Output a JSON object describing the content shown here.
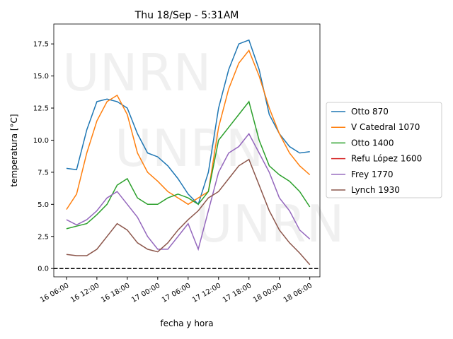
{
  "chart_data": {
    "type": "line",
    "title": "Thu 18/Sep - 5:31AM",
    "x_label": "fecha y hora",
    "y_label": "temperatura [°C]",
    "watermark": "UNRN",
    "x": [
      "16 06:00",
      "16 08:00",
      "16 10:00",
      "16 12:00",
      "16 14:00",
      "16 16:00",
      "16 18:00",
      "16 20:00",
      "16 22:00",
      "17 00:00",
      "17 02:00",
      "17 04:00",
      "17 06:00",
      "17 08:00",
      "17 10:00",
      "17 12:00",
      "17 14:00",
      "17 16:00",
      "17 18:00",
      "17 20:00",
      "17 22:00",
      "18 00:00",
      "18 02:00",
      "18 04:00",
      "18 06:00"
    ],
    "series": [
      {
        "name": "Otto 870",
        "color": "#1f77b4",
        "values": [
          7.8,
          7.7,
          10.8,
          13.0,
          13.2,
          13.0,
          12.5,
          10.5,
          9.0,
          8.7,
          8.0,
          7.0,
          5.8,
          5.0,
          7.5,
          12.5,
          15.5,
          17.5,
          17.8,
          15.5,
          12.0,
          10.5,
          9.5,
          9.0,
          9.1
        ]
      },
      {
        "name": "V Catedral 1070",
        "color": "#ff7f0e",
        "values": [
          4.6,
          5.8,
          9.0,
          11.5,
          13.0,
          13.5,
          12.0,
          9.0,
          7.5,
          6.8,
          6.0,
          5.5,
          5.0,
          5.5,
          6.0,
          11.0,
          14.0,
          16.0,
          17.0,
          15.0,
          12.5,
          10.5,
          9.0,
          8.0,
          7.3
        ]
      },
      {
        "name": "Otto 1400",
        "color": "#2ca02c",
        "values": [
          3.1,
          3.3,
          3.5,
          4.2,
          5.0,
          6.5,
          7.0,
          5.5,
          5.0,
          5.0,
          5.5,
          5.8,
          5.5,
          5.0,
          6.0,
          10.0,
          11.0,
          12.0,
          13.0,
          10.0,
          8.0,
          7.3,
          6.8,
          6.0,
          4.8
        ]
      },
      {
        "name": "Refu López 1600",
        "color": "#d62728",
        "values": [
          null,
          null,
          null,
          null,
          null,
          null,
          null,
          null,
          null,
          null,
          null,
          null,
          null,
          null,
          null,
          null,
          null,
          null,
          null,
          null,
          null,
          null,
          null,
          null,
          null
        ]
      },
      {
        "name": "Frey 1770",
        "color": "#9467bd",
        "values": [
          3.8,
          3.4,
          3.8,
          4.5,
          5.5,
          6.0,
          5.0,
          4.0,
          2.5,
          1.5,
          1.5,
          2.5,
          3.5,
          1.5,
          4.5,
          7.5,
          9.0,
          9.5,
          10.5,
          9.0,
          7.5,
          5.5,
          4.5,
          3.0,
          2.3
        ]
      },
      {
        "name": "Lynch 1930",
        "color": "#8c564b",
        "values": [
          1.1,
          1.0,
          1.0,
          1.5,
          2.5,
          3.5,
          3.0,
          2.0,
          1.5,
          1.3,
          2.0,
          3.0,
          3.8,
          4.5,
          5.5,
          6.0,
          7.0,
          8.0,
          8.5,
          6.5,
          4.5,
          3.0,
          2.0,
          1.2,
          0.3
        ]
      }
    ],
    "hline": 0,
    "xlim": [
      "16 03:30",
      "18 08:00"
    ],
    "xticks": [
      "16 06:00",
      "16 12:00",
      "16 18:00",
      "17 00:00",
      "17 06:00",
      "17 12:00",
      "17 18:00",
      "18 00:00",
      "18 06:00"
    ],
    "ylim": [
      -0.65,
      19.05
    ],
    "yticks": [
      {
        "value": 0,
        "label": "0.0"
      },
      {
        "value": 2.5,
        "label": "2.5"
      },
      {
        "value": 5,
        "label": "5.0"
      },
      {
        "value": 7.5,
        "label": "7.5"
      },
      {
        "value": 10,
        "label": "10.0"
      },
      {
        "value": 12.5,
        "label": "12.5"
      },
      {
        "value": 15,
        "label": "15.0"
      },
      {
        "value": 17.5,
        "label": "17.5"
      }
    ],
    "legend": "right"
  }
}
